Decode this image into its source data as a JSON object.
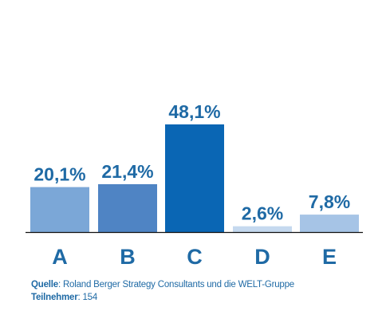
{
  "chart_data": {
    "type": "bar",
    "categories": [
      "A",
      "B",
      "C",
      "D",
      "E"
    ],
    "values": [
      20.1,
      21.4,
      48.1,
      2.6,
      7.8
    ],
    "value_labels": [
      "20,1%",
      "21,4%",
      "48,1%",
      "2,6%",
      "7,8%"
    ],
    "colors": [
      "#7ba7d7",
      "#4f84c4",
      "#0a66b4",
      "#c5d9ef",
      "#a6c4e6"
    ],
    "ylim": [
      0,
      48.1
    ],
    "grid": false,
    "legend": "none"
  },
  "footer": {
    "source_label": "Quelle",
    "source_text": ": Roland Berger Strategy Consultants und die WELT-Gruppe",
    "participants_label": "Teilnehmer",
    "participants_text": ": 154"
  }
}
